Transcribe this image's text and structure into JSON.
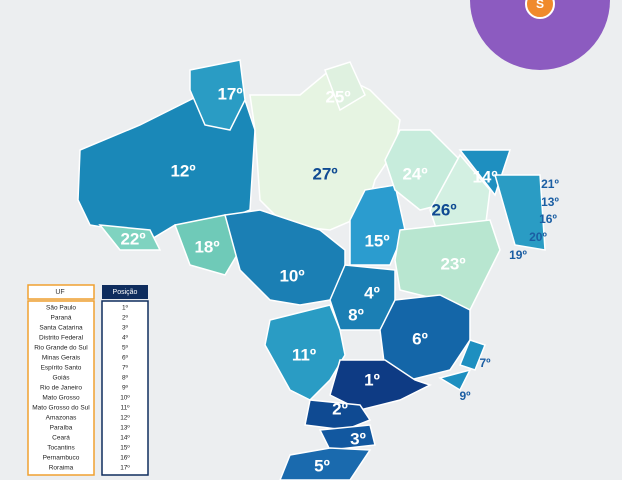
{
  "map": {
    "labels": [
      "17º",
      "25º",
      "12º",
      "27º",
      "24º",
      "14º",
      "21º",
      "13º",
      "16º",
      "26º",
      "20º",
      "19º",
      "22º",
      "18º",
      "15º",
      "23º",
      "10º",
      "4º",
      "8º",
      "6º",
      "11º",
      "1º",
      "7º",
      "2º",
      "9º",
      "3º",
      "5º"
    ]
  },
  "badge": "S",
  "table": {
    "header": [
      "UF",
      "Posição"
    ],
    "rows": [
      [
        "São Paulo",
        "1º"
      ],
      [
        "Paraná",
        "2º"
      ],
      [
        "Santa Catarina",
        "3º"
      ],
      [
        "Distrito Federal",
        "4º"
      ],
      [
        "Rio Grande do Sul",
        "5º"
      ],
      [
        "Minas Gerais",
        "6º"
      ],
      [
        "Espírito Santo",
        "7º"
      ],
      [
        "Goiás",
        "8º"
      ],
      [
        "Rio de Janeiro",
        "9º"
      ],
      [
        "Mato Grosso",
        "10º"
      ],
      [
        "Mato Grosso do Sul",
        "11º"
      ],
      [
        "Amazonas",
        "12º"
      ],
      [
        "Paraíba",
        "13º"
      ],
      [
        "Ceará",
        "14º"
      ],
      [
        "Tocantins",
        "15º"
      ],
      [
        "Pernambuco",
        "16º"
      ],
      [
        "Roraima",
        "17º"
      ]
    ]
  }
}
